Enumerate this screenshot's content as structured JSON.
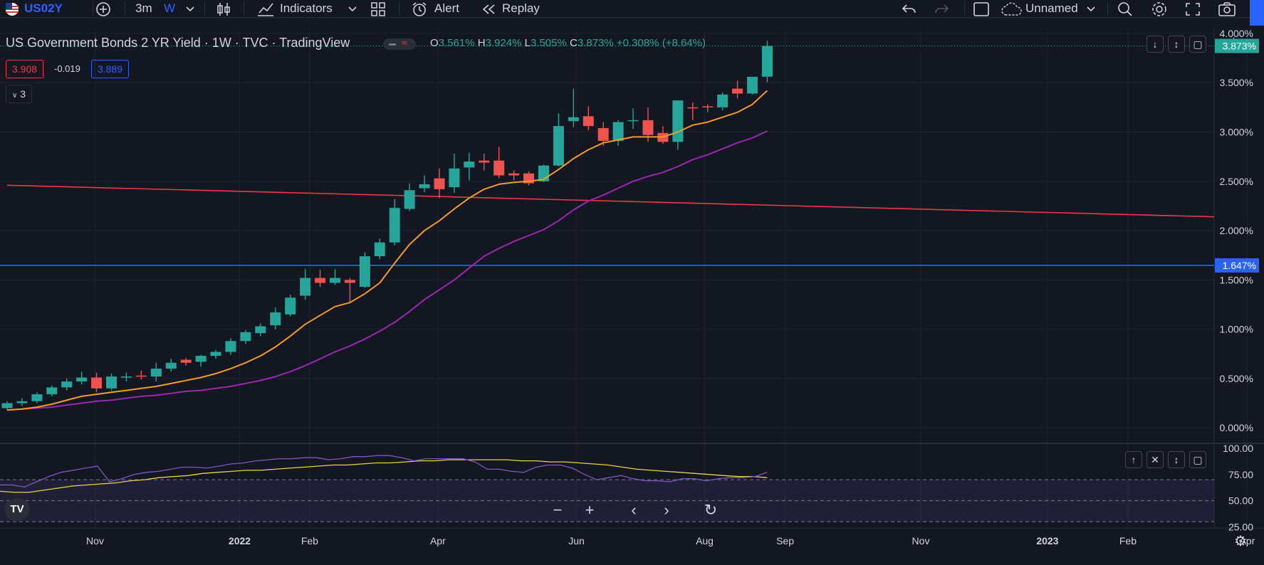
{
  "toolbar": {
    "symbol": "US02Y",
    "interval_1": "3m",
    "interval_2": "W",
    "indicators_label": "Indicators",
    "alert_label": "Alert",
    "replay_label": "Replay",
    "layout_name": "Unnamed"
  },
  "legend": {
    "title": "US Government Bonds 2 YR Yield · 1W · TVC · TradingView",
    "o_label": "O",
    "o_value": "3.561%",
    "h_label": "H",
    "h_value": "3.924%",
    "l_label": "L",
    "l_value": "3.505%",
    "c_label": "C",
    "c_value": "3.873%",
    "change": "+0.308% (+8.64%)",
    "bid": "3.908",
    "spread": "-0.019",
    "ask": "3.889",
    "collapsed_count": "3"
  },
  "colors": {
    "up": "#26a69a",
    "down": "#ef5350",
    "ema_fast": "#f59a23",
    "ema_slow": "#9c27b0",
    "trend": "#f23645",
    "hline": "#2962ff",
    "rsi": "#7e57c2",
    "rsi_ma": "#e8d33e"
  },
  "chart_data": {
    "type": "candlestick",
    "title": "US Government Bonds 2 YR Yield",
    "interval": "1W",
    "y_unit": "pct",
    "ylim": [
      -0.15,
      4.05
    ],
    "y_ticks": [
      "4.000%",
      "3.500%",
      "3.000%",
      "2.500%",
      "2.000%",
      "1.500%",
      "1.000%",
      "0.500%",
      "0.000%"
    ],
    "y_tick_values": [
      4.0,
      3.5,
      3.0,
      2.5,
      2.0,
      1.5,
      1.0,
      0.5,
      0.0
    ],
    "x_ticks": [
      "Nov",
      "2022",
      "Feb",
      "Apr",
      "Jun",
      "Aug",
      "Sep",
      "Nov",
      "2023",
      "Feb",
      "Apr"
    ],
    "x_tick_weeks": [
      5.9,
      15.6,
      20.3,
      28.9,
      38.2,
      46.8,
      52.2,
      61.3,
      69.8,
      75.2,
      83.2
    ],
    "candles": [
      {
        "o": 0.2,
        "h": 0.27,
        "l": 0.18,
        "c": 0.25
      },
      {
        "o": 0.25,
        "h": 0.3,
        "l": 0.22,
        "c": 0.27
      },
      {
        "o": 0.27,
        "h": 0.36,
        "l": 0.25,
        "c": 0.34
      },
      {
        "o": 0.34,
        "h": 0.43,
        "l": 0.32,
        "c": 0.41
      },
      {
        "o": 0.41,
        "h": 0.5,
        "l": 0.38,
        "c": 0.47
      },
      {
        "o": 0.47,
        "h": 0.57,
        "l": 0.44,
        "c": 0.51
      },
      {
        "o": 0.51,
        "h": 0.56,
        "l": 0.36,
        "c": 0.4
      },
      {
        "o": 0.4,
        "h": 0.55,
        "l": 0.38,
        "c": 0.52
      },
      {
        "o": 0.51,
        "h": 0.56,
        "l": 0.47,
        "c": 0.52
      },
      {
        "o": 0.53,
        "h": 0.58,
        "l": 0.49,
        "c": 0.52
      },
      {
        "o": 0.52,
        "h": 0.66,
        "l": 0.47,
        "c": 0.6
      },
      {
        "o": 0.6,
        "h": 0.7,
        "l": 0.57,
        "c": 0.66
      },
      {
        "o": 0.69,
        "h": 0.71,
        "l": 0.63,
        "c": 0.66
      },
      {
        "o": 0.67,
        "h": 0.74,
        "l": 0.62,
        "c": 0.73
      },
      {
        "o": 0.73,
        "h": 0.79,
        "l": 0.7,
        "c": 0.77
      },
      {
        "o": 0.77,
        "h": 0.91,
        "l": 0.74,
        "c": 0.88
      },
      {
        "o": 0.88,
        "h": 0.99,
        "l": 0.85,
        "c": 0.97
      },
      {
        "o": 0.96,
        "h": 1.06,
        "l": 0.93,
        "c": 1.03
      },
      {
        "o": 1.04,
        "h": 1.22,
        "l": 1.0,
        "c": 1.17
      },
      {
        "o": 1.15,
        "h": 1.35,
        "l": 1.13,
        "c": 1.32
      },
      {
        "o": 1.34,
        "h": 1.61,
        "l": 1.3,
        "c": 1.52
      },
      {
        "o": 1.52,
        "h": 1.6,
        "l": 1.43,
        "c": 1.47
      },
      {
        "o": 1.47,
        "h": 1.61,
        "l": 1.45,
        "c": 1.52
      },
      {
        "o": 1.5,
        "h": 1.52,
        "l": 1.26,
        "c": 1.47
      },
      {
        "o": 1.43,
        "h": 1.78,
        "l": 1.42,
        "c": 1.74
      },
      {
        "o": 1.74,
        "h": 1.92,
        "l": 1.71,
        "c": 1.88
      },
      {
        "o": 1.88,
        "h": 2.32,
        "l": 1.85,
        "c": 2.23
      },
      {
        "o": 2.22,
        "h": 2.48,
        "l": 2.2,
        "c": 2.41
      },
      {
        "o": 2.43,
        "h": 2.56,
        "l": 2.39,
        "c": 2.47
      },
      {
        "o": 2.53,
        "h": 2.63,
        "l": 2.33,
        "c": 2.42
      },
      {
        "o": 2.44,
        "h": 2.78,
        "l": 2.38,
        "c": 2.63
      },
      {
        "o": 2.64,
        "h": 2.79,
        "l": 2.51,
        "c": 2.7
      },
      {
        "o": 2.71,
        "h": 2.78,
        "l": 2.61,
        "c": 2.69
      },
      {
        "o": 2.71,
        "h": 2.85,
        "l": 2.53,
        "c": 2.56
      },
      {
        "o": 2.58,
        "h": 2.61,
        "l": 2.51,
        "c": 2.56
      },
      {
        "o": 2.58,
        "h": 2.6,
        "l": 2.46,
        "c": 2.48
      },
      {
        "o": 2.5,
        "h": 2.67,
        "l": 2.49,
        "c": 2.66
      },
      {
        "o": 2.66,
        "h": 3.19,
        "l": 2.65,
        "c": 3.06
      },
      {
        "o": 3.11,
        "h": 3.44,
        "l": 3.05,
        "c": 3.15
      },
      {
        "o": 3.16,
        "h": 3.26,
        "l": 3.02,
        "c": 3.06
      },
      {
        "o": 3.04,
        "h": 3.1,
        "l": 2.86,
        "c": 2.91
      },
      {
        "o": 2.91,
        "h": 3.12,
        "l": 2.86,
        "c": 3.1
      },
      {
        "o": 3.12,
        "h": 3.24,
        "l": 3.03,
        "c": 3.12
      },
      {
        "o": 3.12,
        "h": 3.25,
        "l": 2.9,
        "c": 2.97
      },
      {
        "o": 2.99,
        "h": 3.06,
        "l": 2.88,
        "c": 2.9
      },
      {
        "o": 2.9,
        "h": 3.32,
        "l": 2.82,
        "c": 3.32
      },
      {
        "o": 3.25,
        "h": 3.3,
        "l": 3.12,
        "c": 3.24
      },
      {
        "o": 3.26,
        "h": 3.28,
        "l": 3.2,
        "c": 3.25
      },
      {
        "o": 3.25,
        "h": 3.4,
        "l": 3.22,
        "c": 3.38
      },
      {
        "o": 3.44,
        "h": 3.52,
        "l": 3.34,
        "c": 3.39
      },
      {
        "o": 3.39,
        "h": 3.56,
        "l": 3.38,
        "c": 3.56
      },
      {
        "o": 3.561,
        "h": 3.924,
        "l": 3.505,
        "c": 3.873
      }
    ],
    "ema_fast": [
      0.18,
      0.19,
      0.21,
      0.24,
      0.28,
      0.32,
      0.34,
      0.36,
      0.38,
      0.4,
      0.42,
      0.45,
      0.48,
      0.51,
      0.55,
      0.6,
      0.66,
      0.73,
      0.82,
      0.93,
      1.05,
      1.14,
      1.23,
      1.27,
      1.36,
      1.47,
      1.67,
      1.86,
      2.0,
      2.1,
      2.22,
      2.33,
      2.42,
      2.47,
      2.49,
      2.5,
      2.52,
      2.62,
      2.73,
      2.82,
      2.89,
      2.92,
      2.95,
      2.95,
      2.95,
      3.0,
      3.07,
      3.1,
      3.15,
      3.2,
      3.28,
      3.42
    ],
    "ema_slow": [
      0.18,
      0.19,
      0.2,
      0.21,
      0.23,
      0.25,
      0.27,
      0.28,
      0.3,
      0.32,
      0.33,
      0.35,
      0.37,
      0.38,
      0.4,
      0.42,
      0.45,
      0.48,
      0.52,
      0.57,
      0.63,
      0.7,
      0.77,
      0.83,
      0.9,
      0.98,
      1.07,
      1.18,
      1.3,
      1.4,
      1.5,
      1.62,
      1.74,
      1.82,
      1.89,
      1.95,
      2.01,
      2.1,
      2.21,
      2.3,
      2.36,
      2.43,
      2.5,
      2.55,
      2.59,
      2.65,
      2.72,
      2.77,
      2.83,
      2.89,
      2.94,
      3.01
    ],
    "trend_line": {
      "x": [
        0,
        84.4
      ],
      "y": [
        2.46,
        2.14
      ]
    },
    "horizontal_line": 1.647,
    "price_label": "3.873%",
    "hline_label": "1.647%",
    "rsi": {
      "ylim": [
        24,
        104
      ],
      "y_ticks": [
        "100.00",
        "75.00",
        "50.00",
        "25.00"
      ],
      "y_tick_values": [
        100,
        75,
        50,
        25
      ],
      "levels": [
        70,
        50,
        30
      ],
      "rsi_values": [
        65,
        65,
        63,
        68,
        73,
        77,
        79,
        81,
        83,
        68,
        71,
        75,
        77,
        78,
        80,
        82,
        82,
        81,
        83,
        85,
        86,
        88,
        89,
        90,
        90,
        91,
        91,
        89,
        90,
        92,
        92,
        93,
        93,
        91,
        88,
        90,
        90,
        90,
        90,
        87,
        80,
        80,
        78,
        77,
        82,
        84,
        84,
        81,
        75,
        70,
        72,
        74,
        71,
        69,
        69,
        68,
        71,
        71,
        69,
        71,
        72,
        72,
        73,
        77
      ],
      "ma_values": [
        59,
        58,
        58,
        60,
        62,
        64,
        65,
        66,
        67,
        69,
        70,
        72,
        73,
        74,
        76,
        77,
        78,
        79,
        79,
        80,
        81,
        82,
        83,
        84,
        84,
        85,
        86,
        86,
        87,
        88,
        88,
        89,
        89,
        89,
        89,
        89,
        88,
        88,
        87,
        87,
        86,
        85,
        84,
        82,
        80,
        79,
        78,
        77,
        76,
        75,
        74,
        73,
        73,
        72
      ]
    }
  }
}
